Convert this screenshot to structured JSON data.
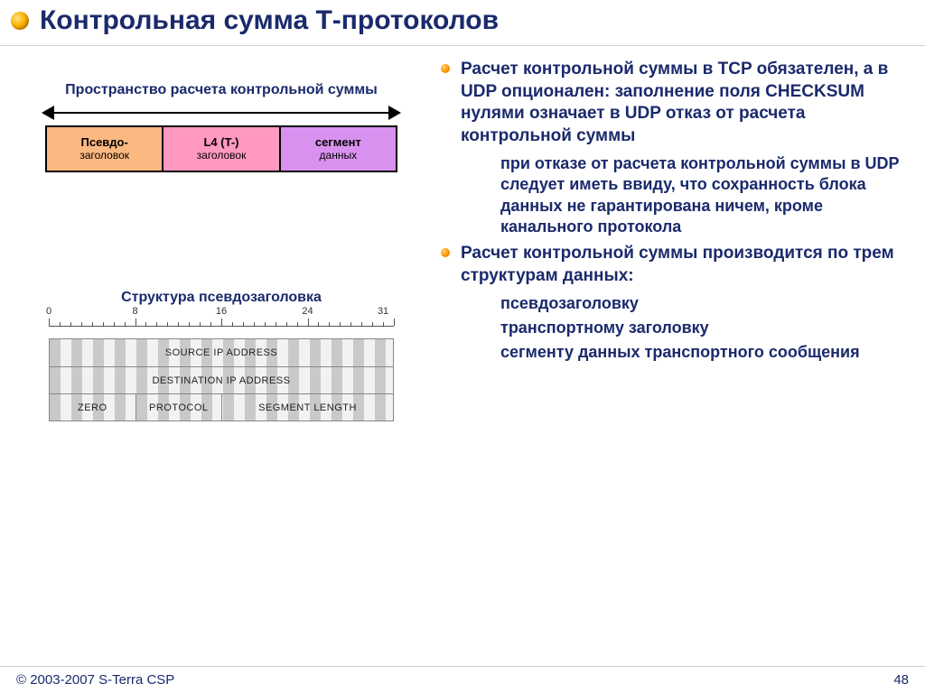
{
  "title": "Контрольная сумма Т-протоколов",
  "colors": {
    "title_text": "#1a2a6c",
    "bullet_gradient": [
      "#ffd27a",
      "#ff9800",
      "#d86f00"
    ],
    "segment_pseudo": "#fbb880",
    "segment_l4": "#ff99c0",
    "segment_data": "#d991ef",
    "stripe_dark": "#c9c9c9",
    "stripe_light": "#f2f2f2",
    "border": "#000000"
  },
  "left": {
    "space_diagram": {
      "caption": "Пространство расчета контрольной суммы",
      "segments": [
        {
          "top": "Псевдо-",
          "bottom": "заголовок",
          "color": "#fbb880"
        },
        {
          "top": "L4 (T-)",
          "bottom": "заголовок",
          "color": "#ff99c0"
        },
        {
          "top": "сегмент",
          "bottom": "данных",
          "color": "#d991ef"
        }
      ]
    },
    "pseudo_header": {
      "caption": "Структура псевдозаголовка",
      "bit_labels": [
        "0",
        "8",
        "16",
        "24",
        "31"
      ],
      "total_bits": 32,
      "rows": [
        [
          {
            "label": "SOURCE IP ADDRESS",
            "span": 32
          }
        ],
        [
          {
            "label": "DESTINATION IP ADDRESS",
            "span": 32
          }
        ],
        [
          {
            "label": "ZERO",
            "span": 8
          },
          {
            "label": "PROTOCOL",
            "span": 8
          },
          {
            "label": "SEGMENT LENGTH",
            "span": 16
          }
        ]
      ]
    }
  },
  "right": {
    "bullets": [
      {
        "text": "Расчет контрольной суммы в TCP обязателен, а в UDP опционален: заполнение  поля CHECKSUM нулями означает в UDP отказ от расчета контрольной суммы",
        "sub": [
          "при отказе от расчета контрольной суммы в UDP следует иметь ввиду, что сохранность блока данных не гарантирована ничем, кроме канального протокола"
        ]
      },
      {
        "text": "Расчет контрольной суммы производится по трем структурам данных:",
        "sub": [
          "псевдозаголовку",
          "транспортному заголовку",
          "сегменту данных транспортного сообщения"
        ]
      }
    ]
  },
  "footer": {
    "copyright": "©  2003-2007   S-Terra CSP",
    "page": "48"
  }
}
